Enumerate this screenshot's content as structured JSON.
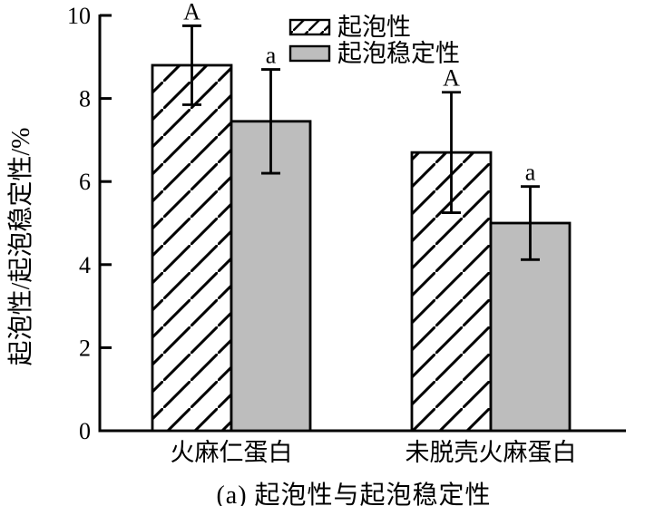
{
  "figure": {
    "caption": "(a) 起泡性与起泡稳定性"
  },
  "chart_data": {
    "type": "bar",
    "title": "",
    "caption": "(a) 起泡性与起泡稳定性",
    "xlabel": "",
    "ylabel": "起泡性/起泡稳定性/%",
    "ylim": [
      0,
      10
    ],
    "yticks": [
      0,
      2,
      4,
      6,
      8,
      10
    ],
    "grid": false,
    "legend_position": "top-right-inside",
    "categories": [
      "火麻仁蛋白",
      "未脱壳火麻蛋白"
    ],
    "series": [
      {
        "name": "起泡性",
        "style": "hatched",
        "values": [
          8.8,
          6.7
        ],
        "errors": [
          0.95,
          1.45
        ],
        "sig_letters": [
          "A",
          "A"
        ]
      },
      {
        "name": "起泡稳定性",
        "style": "gray",
        "values": [
          7.45,
          5.0
        ],
        "errors": [
          1.25,
          0.88
        ],
        "sig_letters": [
          "a",
          "a"
        ]
      }
    ],
    "colors": {
      "gray_fill": "#bdbdbd",
      "line": "#000000",
      "background": "#ffffff"
    }
  }
}
